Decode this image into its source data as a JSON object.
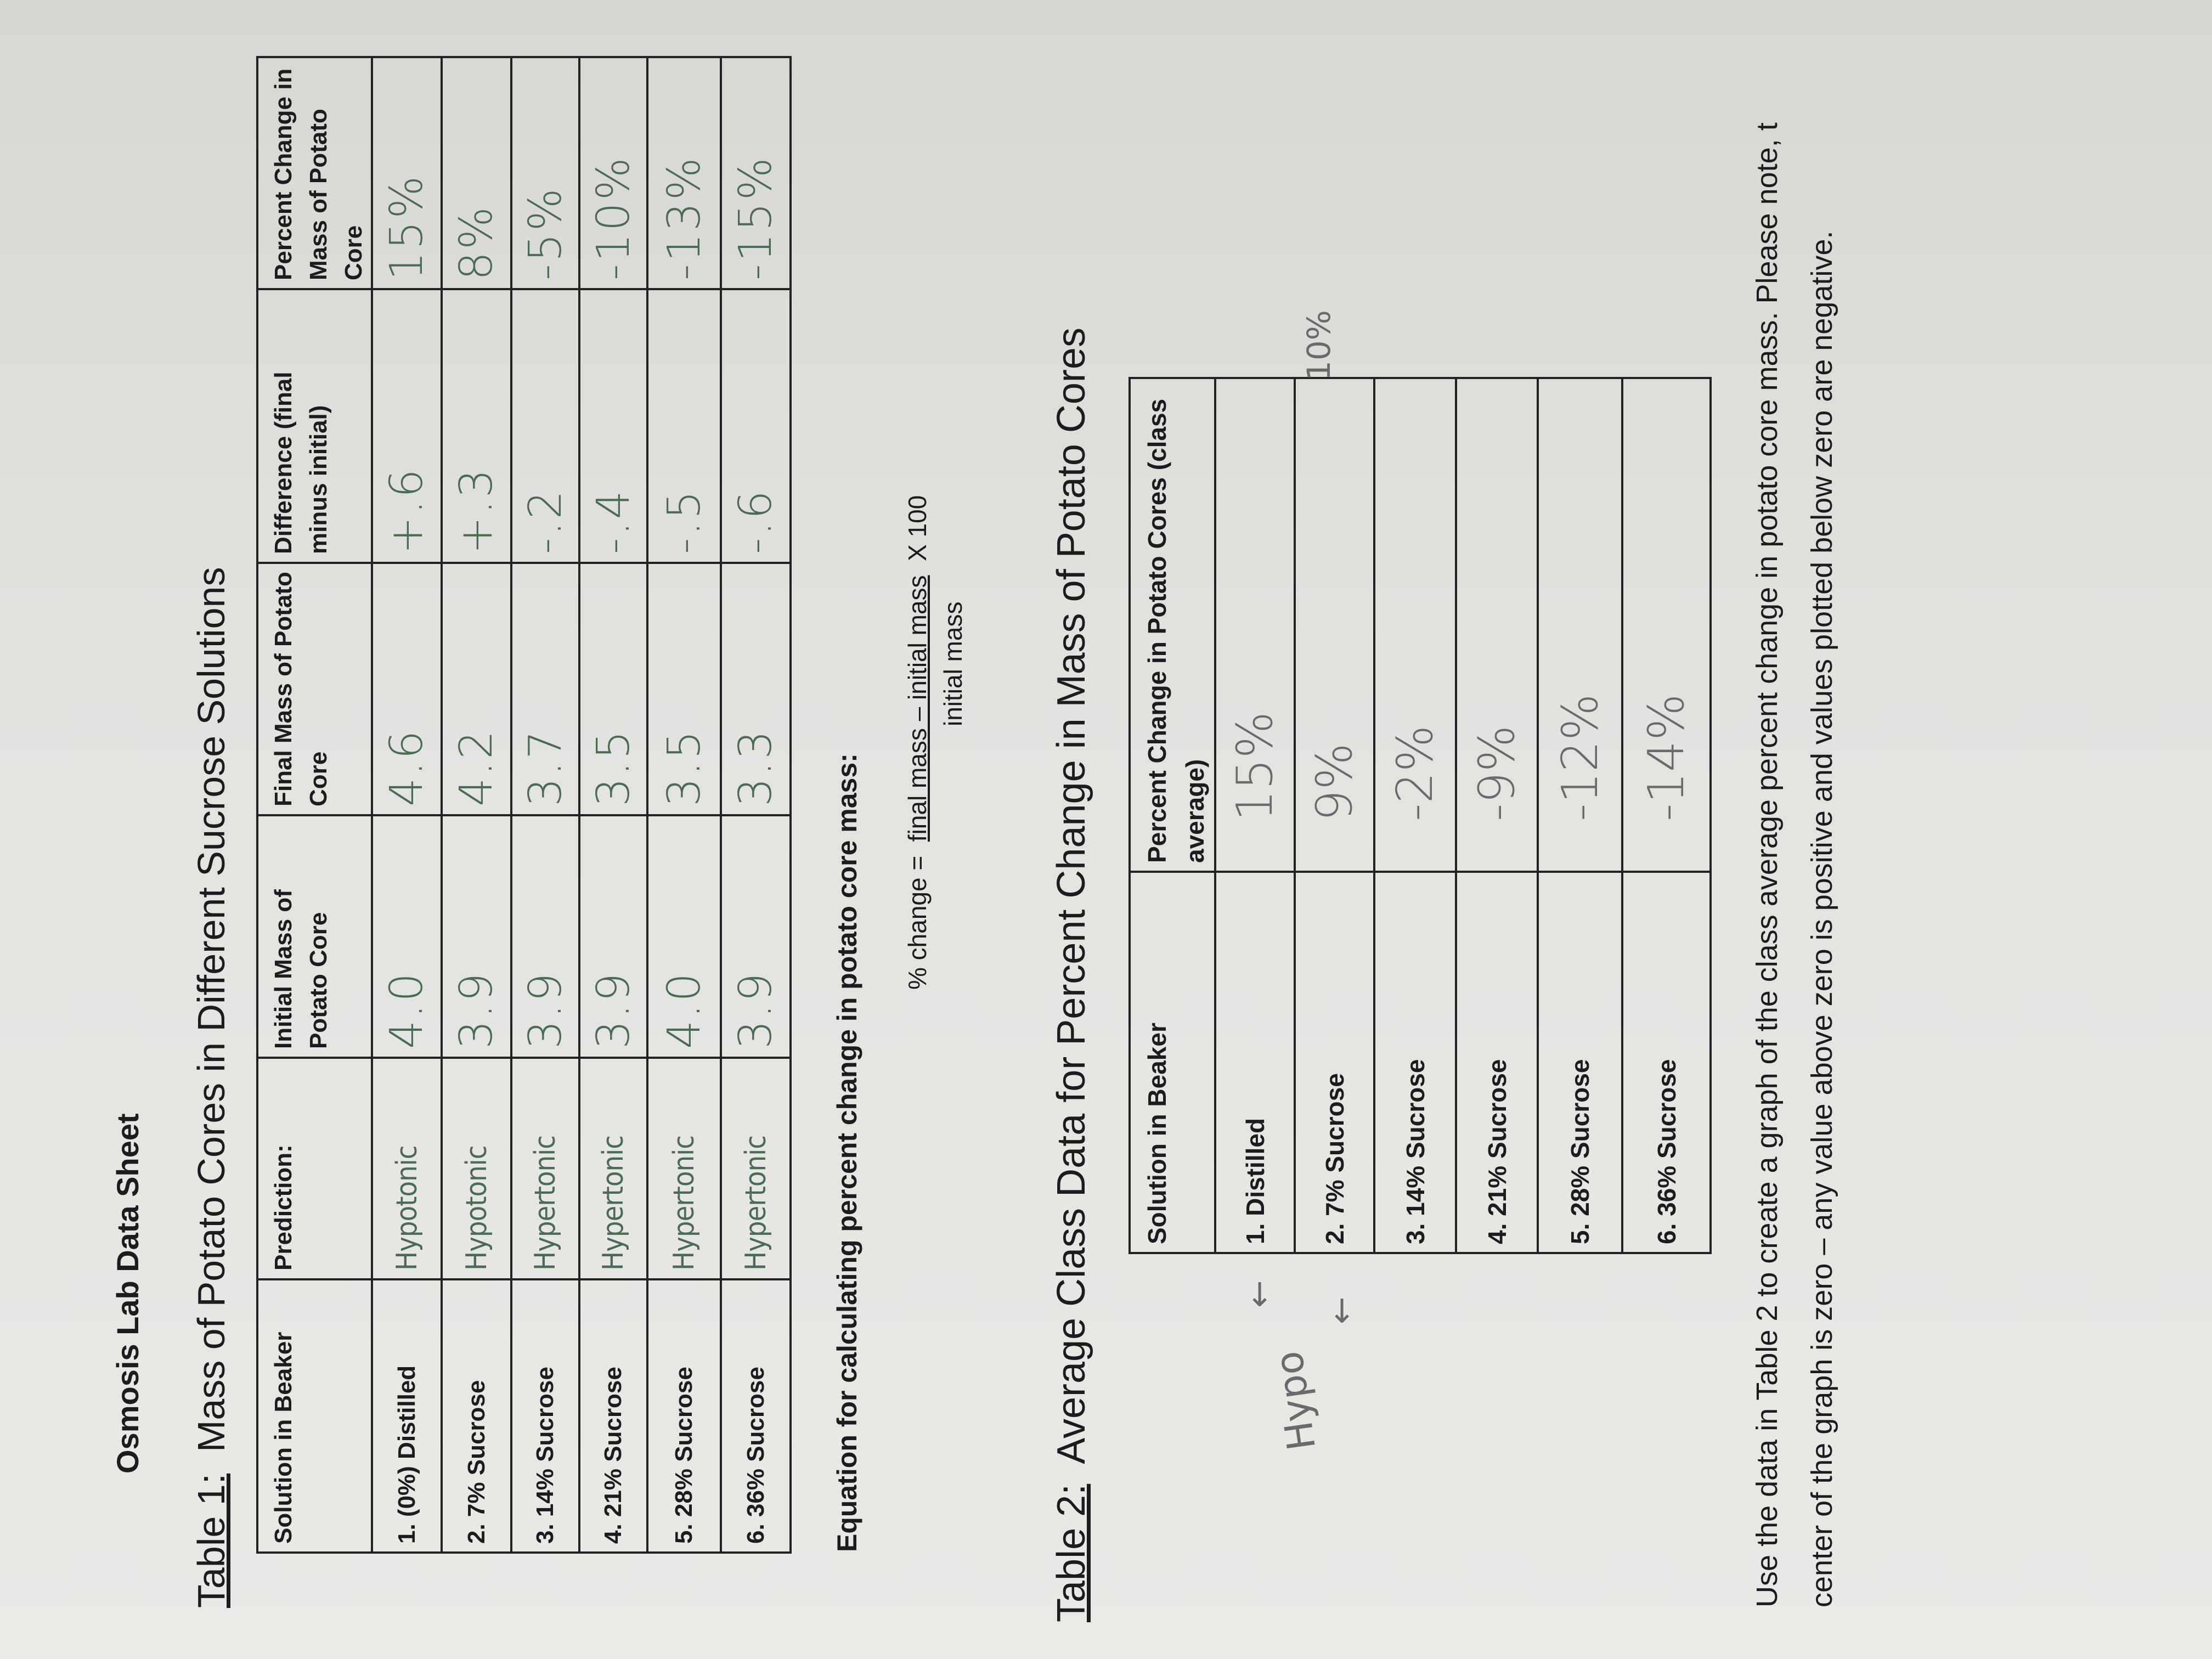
{
  "title": "Osmosis Lab Data Sheet",
  "table1": {
    "caption_label": "Table 1:",
    "caption": "Mass of Potato Cores in Different Sucrose Solutions",
    "headers": [
      "Solution in Beaker",
      "Prediction:",
      "Initial Mass of Potato Core",
      "Final Mass of Potato Core",
      "Difference (final minus initial)",
      "Percent Change in Mass of Potato Core"
    ],
    "rows": [
      {
        "solution": "1. (0%) Distilled",
        "prediction": "Hypotonic",
        "initial": "4.0",
        "final": "4.6",
        "difference": "+.6",
        "percent": "15%"
      },
      {
        "solution": "2. 7% Sucrose",
        "prediction": "Hypotonic",
        "initial": "3.9",
        "final": "4.2",
        "difference": "+.3",
        "percent": "8%"
      },
      {
        "solution": "3. 14% Sucrose",
        "prediction": "Hypertonic",
        "initial": "3.9",
        "final": "3.7",
        "difference": "-.2",
        "percent": "-5%"
      },
      {
        "solution": "4. 21% Sucrose",
        "prediction": "Hypertonic",
        "initial": "3.9",
        "final": "3.5",
        "difference": "-.4",
        "percent": "-10%"
      },
      {
        "solution": "5. 28% Sucrose",
        "prediction": "Hypertonic",
        "initial": "4.0",
        "final": "3.5",
        "difference": "-.5",
        "percent": "-13%"
      },
      {
        "solution": "6. 36% Sucrose",
        "prediction": "Hypertonic",
        "initial": "3.9",
        "final": "3.3",
        "difference": "-.6",
        "percent": "-15%"
      }
    ]
  },
  "equation": {
    "heading": "Equation for calculating percent change in potato core mass:",
    "lhs": "% change =",
    "numerator": "final mass – initial mass",
    "multiplier": "X 100",
    "denominator": "initial mass"
  },
  "table2": {
    "caption_label": "Table 2:",
    "caption": "Average Class Data for Percent Change in Mass of Potato Cores",
    "headers": [
      "Solution in Beaker",
      "Percent Change in Potato Cores (class average)"
    ],
    "rows": [
      {
        "solution": "1. Distilled",
        "percent": "15%"
      },
      {
        "solution": "2. 7% Sucrose",
        "percent": "9%"
      },
      {
        "solution": "3. 14% Sucrose",
        "percent": "-2%"
      },
      {
        "solution": "4. 21% Sucrose",
        "percent": "-9%"
      },
      {
        "solution": "5. 28% Sucrose",
        "percent": "-12%"
      },
      {
        "solution": "6. 36% Sucrose",
        "percent": "-14%"
      }
    ],
    "margin_note": "Hypo",
    "side_note": "10%"
  },
  "instructions": {
    "line1": "Use the data in Table 2 to create a graph of the class average percent change in potato core mass.  Please note, t",
    "line2": "center of the graph is zero – any value above zero is positive and values plotted below zero are negative."
  }
}
